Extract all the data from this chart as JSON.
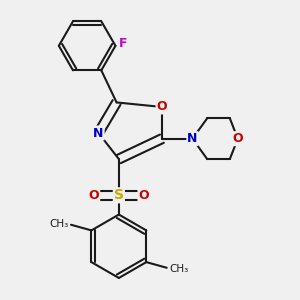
{
  "bg_color": "#f0f0f0",
  "bond_color": "#1a1a1a",
  "bond_width": 1.5,
  "atom_colors": {
    "N": "#0000cc",
    "O": "#cc0000",
    "S": "#ccaa00",
    "F": "#cc00cc",
    "C": "#1a1a1a"
  }
}
